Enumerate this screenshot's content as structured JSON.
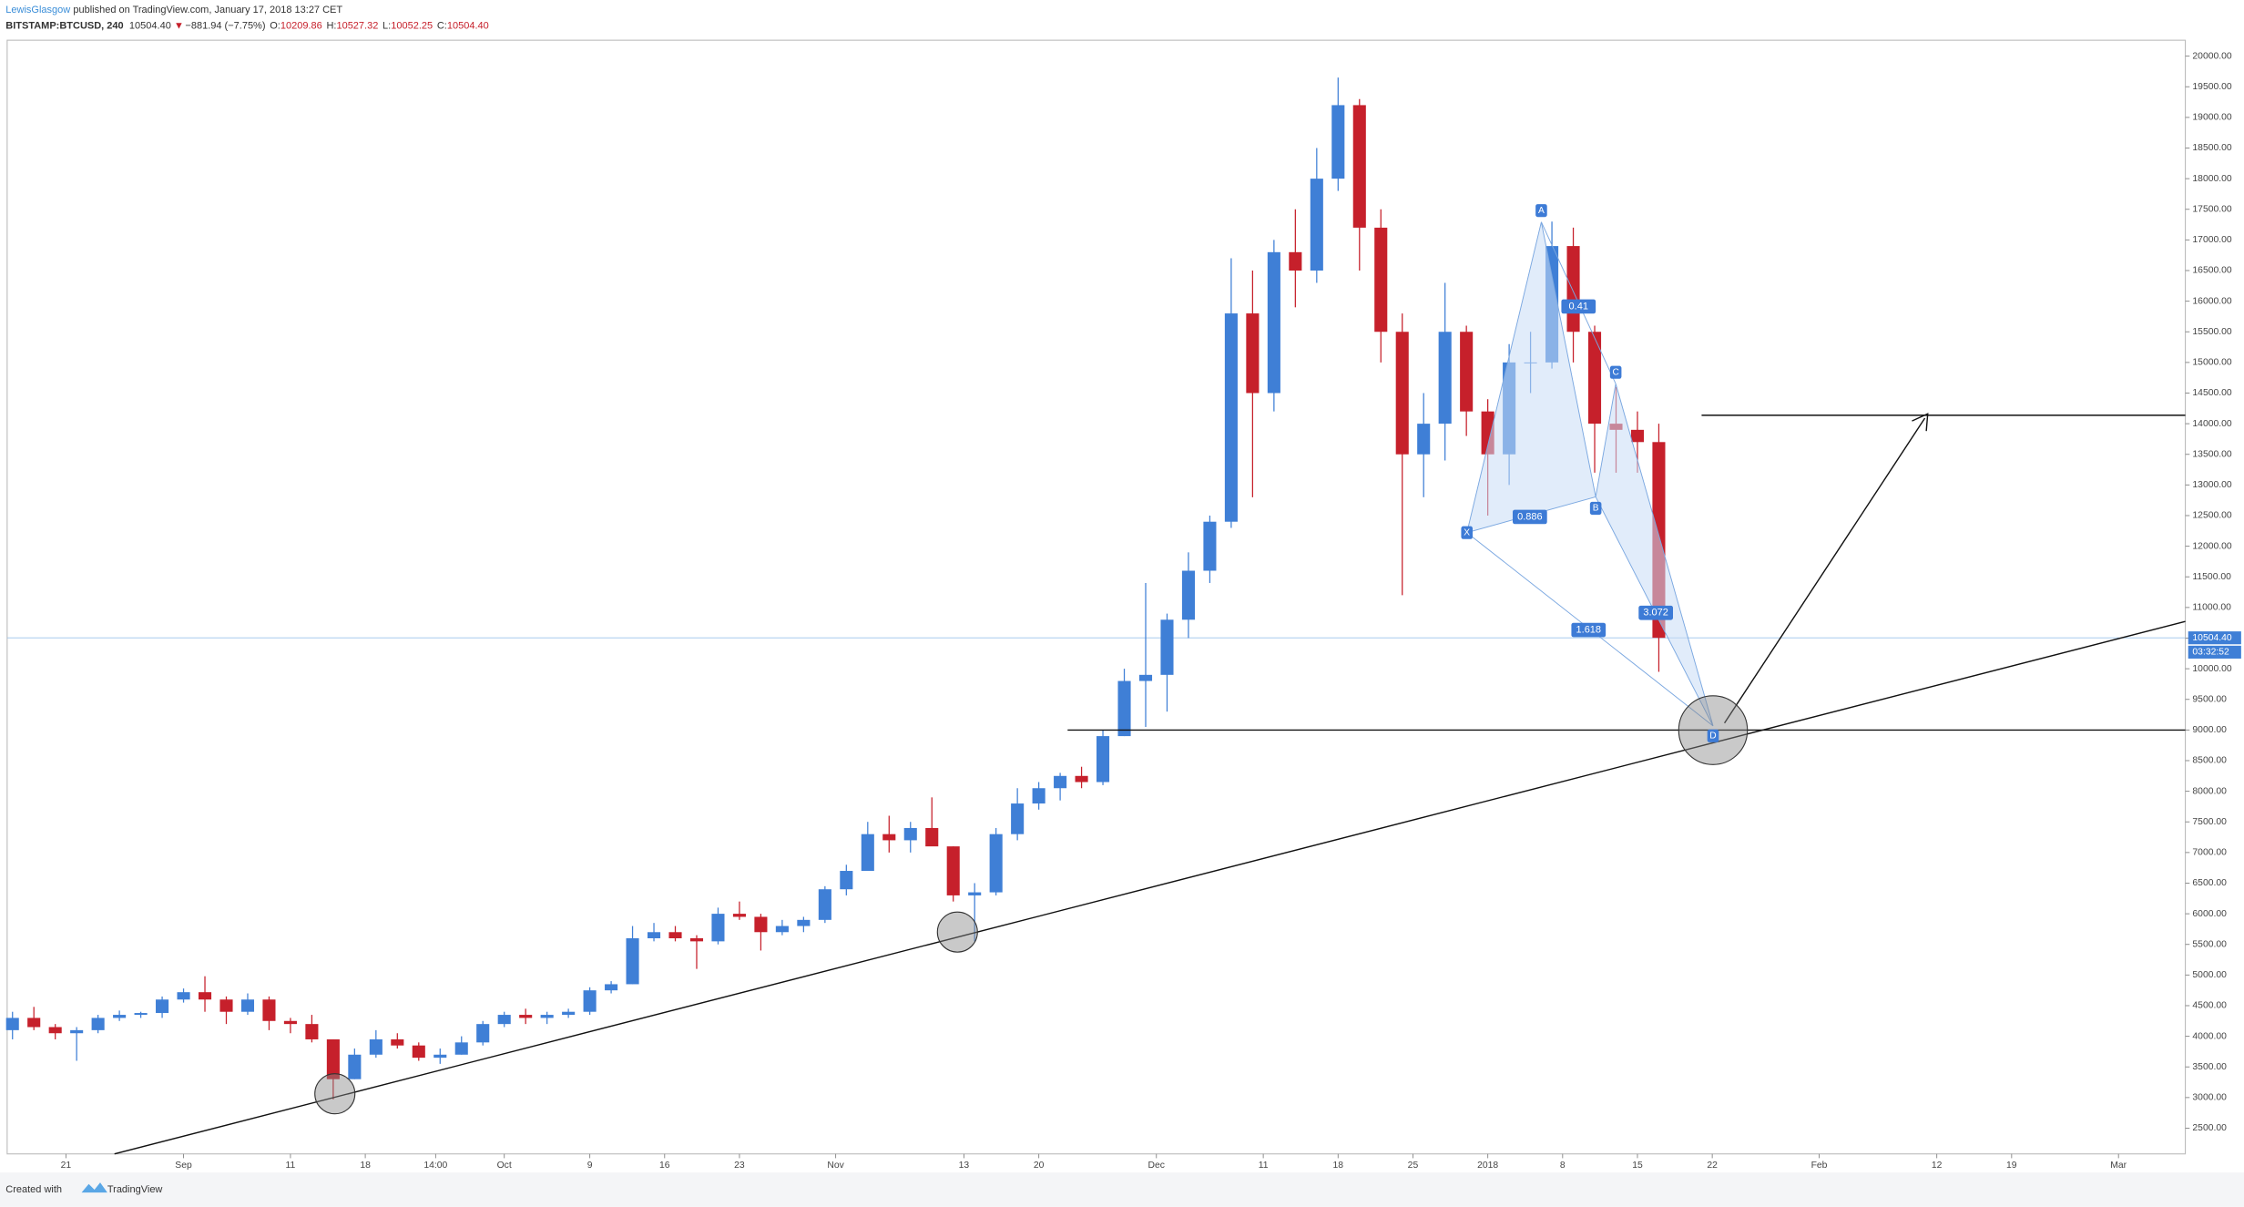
{
  "header": {
    "author": "LewisGlasgow",
    "published": "published on TradingView.com, January 17, 2018 13:27 CET"
  },
  "legend": {
    "symbol": "BITSTAMP:BTCUSD, 240",
    "last": "10504.40",
    "arrow": "▼",
    "change": "−881.94 (−7.75%)",
    "ohlc": [
      {
        "label": "O:",
        "value": "10209.86"
      },
      {
        "label": "H:",
        "value": "10527.32"
      },
      {
        "label": "L:",
        "value": "10052.25"
      },
      {
        "label": "C:",
        "value": "10504.40"
      }
    ]
  },
  "footer": {
    "created": "Created with",
    "brand": "TradingView"
  },
  "chart_data": {
    "type": "candlestick",
    "up_color": "#3f7fd6",
    "down_color": "#c6202b",
    "grid": false,
    "dates": [
      "2017-08-15",
      "2017-08-17",
      "2017-08-19",
      "2017-08-21",
      "2017-08-23",
      "2017-08-25",
      "2017-08-27",
      "2017-08-29",
      "2017-08-31",
      "2017-09-02",
      "2017-09-04",
      "2017-09-06",
      "2017-09-08",
      "2017-09-10",
      "2017-09-12",
      "2017-09-14",
      "2017-09-16",
      "2017-09-18",
      "2017-09-20",
      "2017-09-22",
      "2017-09-24",
      "2017-09-26",
      "2017-09-28",
      "2017-09-30",
      "2017-10-02",
      "2017-10-04",
      "2017-10-06",
      "2017-10-08",
      "2017-10-10",
      "2017-10-12",
      "2017-10-14",
      "2017-10-16",
      "2017-10-18",
      "2017-10-20",
      "2017-10-22",
      "2017-10-24",
      "2017-10-26",
      "2017-10-28",
      "2017-10-30",
      "2017-11-01",
      "2017-11-03",
      "2017-11-05",
      "2017-11-07",
      "2017-11-09",
      "2017-11-11",
      "2017-11-13",
      "2017-11-15",
      "2017-11-17",
      "2017-11-19",
      "2017-11-21",
      "2017-11-23",
      "2017-11-25",
      "2017-11-27",
      "2017-11-29",
      "2017-12-01",
      "2017-12-03",
      "2017-12-05",
      "2017-12-07",
      "2017-12-09",
      "2017-12-11",
      "2017-12-13",
      "2017-12-15",
      "2017-12-17",
      "2017-12-19",
      "2017-12-21",
      "2017-12-23",
      "2017-12-25",
      "2017-12-27",
      "2017-12-29",
      "2017-12-31",
      "2018-01-02",
      "2018-01-04",
      "2018-01-06",
      "2018-01-08",
      "2018-01-10",
      "2018-01-12",
      "2018-01-14",
      "2018-01-16"
    ],
    "open": [
      4100,
      4300,
      4150,
      4050,
      4100,
      4300,
      4350,
      4380,
      4600,
      4720,
      4600,
      4400,
      4600,
      4250,
      4200,
      3950,
      3300,
      3700,
      3950,
      3850,
      3650,
      3700,
      3900,
      4200,
      4350,
      4300,
      4350,
      4400,
      4750,
      4850,
      5600,
      5700,
      5600,
      5550,
      6000,
      5950,
      5700,
      5800,
      5900,
      6400,
      6700,
      7300,
      7200,
      7400,
      7100,
      6300,
      6350,
      7300,
      7800,
      8050,
      8250,
      8150,
      8900,
      9800,
      9900,
      10800,
      11600,
      12400,
      15800,
      14500,
      16800,
      16500,
      18000,
      19200,
      17200,
      15500,
      13500,
      14000,
      15500,
      14200,
      13500,
      15000,
      15000,
      16900,
      15500,
      14000,
      13900,
      13700
    ],
    "high": [
      4400,
      4480,
      4200,
      4150,
      4350,
      4420,
      4400,
      4650,
      4780,
      4980,
      4650,
      4700,
      4650,
      4300,
      4350,
      3950,
      3800,
      4100,
      4050,
      3900,
      3800,
      4000,
      4250,
      4400,
      4450,
      4400,
      4450,
      4800,
      4900,
      5800,
      5850,
      5800,
      5650,
      6100,
      6200,
      6000,
      5900,
      5950,
      6450,
      6800,
      7500,
      7600,
      7500,
      7900,
      7100,
      6500,
      7400,
      8050,
      8150,
      8300,
      8400,
      9000,
      10000,
      11400,
      10900,
      11900,
      12500,
      16700,
      16500,
      17000,
      17500,
      18500,
      19650,
      19300,
      17500,
      15800,
      14500,
      16300,
      15600,
      14400,
      15300,
      15500,
      17300,
      17200,
      15600,
      14600,
      14200,
      14000
    ],
    "low": [
      3950,
      4100,
      3950,
      3600,
      4050,
      4250,
      4300,
      4300,
      4550,
      4400,
      4200,
      4350,
      4100,
      4050,
      3900,
      2970,
      3300,
      3650,
      3800,
      3600,
      3550,
      3700,
      3850,
      4150,
      4200,
      4200,
      4300,
      4350,
      4700,
      4850,
      5550,
      5550,
      5100,
      5500,
      5900,
      5400,
      5650,
      5700,
      5850,
      6300,
      6700,
      7000,
      7000,
      7200,
      6200,
      5550,
      6300,
      7200,
      7700,
      7850,
      8050,
      8100,
      8900,
      9050,
      9300,
      10500,
      11400,
      12300,
      12800,
      14200,
      15900,
      16300,
      17800,
      16500,
      15000,
      11200,
      12800,
      13400,
      13800,
      12500,
      13000,
      14500,
      14900,
      15000,
      13200,
      13200,
      13200,
      9950
    ],
    "close": [
      4300,
      4150,
      4050,
      4100,
      4300,
      4350,
      4380,
      4600,
      4720,
      4600,
      4400,
      4600,
      4250,
      4200,
      3950,
      3300,
      3700,
      3950,
      3850,
      3650,
      3700,
      3900,
      4200,
      4350,
      4300,
      4350,
      4400,
      4750,
      4850,
      5600,
      5700,
      5600,
      5550,
      6000,
      5950,
      5700,
      5800,
      5900,
      6400,
      6700,
      7300,
      7200,
      7400,
      7100,
      6300,
      6350,
      7300,
      7800,
      8050,
      8250,
      8150,
      8900,
      9800,
      9900,
      10800,
      11600,
      12400,
      15800,
      14500,
      16800,
      16500,
      18000,
      19200,
      17200,
      15500,
      13500,
      14000,
      15500,
      14200,
      13500,
      15000,
      15000,
      16900,
      15500,
      14000,
      13900,
      13700,
      10504.4
    ],
    "last_price": {
      "value": 10504.4,
      "label": "10504.40",
      "countdown": "03:32:52"
    },
    "ylim": [
      2080,
      20260
    ],
    "yticks": [
      {
        "value": 2500,
        "label": "2500.00"
      },
      {
        "value": 3000,
        "label": "3000.00"
      },
      {
        "value": 3500,
        "label": "3500.00"
      },
      {
        "value": 4000,
        "label": "4000.00"
      },
      {
        "value": 4500,
        "label": "4500.00"
      },
      {
        "value": 5000,
        "label": "5000.00"
      },
      {
        "value": 5500,
        "label": "5500.00"
      },
      {
        "value": 6000,
        "label": "6000.00"
      },
      {
        "value": 6500,
        "label": "6500.00"
      },
      {
        "value": 7000,
        "label": "7000.00"
      },
      {
        "value": 7500,
        "label": "7500.00"
      },
      {
        "value": 8000,
        "label": "8000.00"
      },
      {
        "value": 8500,
        "label": "8500.00"
      },
      {
        "value": 9000,
        "label": "9000.00"
      },
      {
        "value": 9500,
        "label": "9500.00"
      },
      {
        "value": 10000,
        "label": "10000.00"
      },
      {
        "value": 10500,
        "label": "10500.00"
      },
      {
        "value": 11000,
        "label": "11000.00"
      },
      {
        "value": 11500,
        "label": "11500.00"
      },
      {
        "value": 12000,
        "label": "12000.00"
      },
      {
        "value": 12500,
        "label": "12500.00"
      },
      {
        "value": 13000,
        "label": "13000.00"
      },
      {
        "value": 13500,
        "label": "13500.00"
      },
      {
        "value": 14000,
        "label": "14000.00"
      },
      {
        "value": 14500,
        "label": "14500.00"
      },
      {
        "value": 15000,
        "label": "15000.00"
      },
      {
        "value": 15500,
        "label": "15500.00"
      },
      {
        "value": 16000,
        "label": "16000.00"
      },
      {
        "value": 16500,
        "label": "16500.00"
      },
      {
        "value": 17000,
        "label": "17000.00"
      },
      {
        "value": 17500,
        "label": "17500.00"
      },
      {
        "value": 18000,
        "label": "18000.00"
      },
      {
        "value": 18500,
        "label": "18500.00"
      },
      {
        "value": 19000,
        "label": "19000.00"
      },
      {
        "value": 19500,
        "label": "19500.00"
      },
      {
        "value": 20000,
        "label": "20000.00"
      }
    ],
    "xlim": [
      "2017-08-15T12:00",
      "2018-03-07T06:00"
    ],
    "xticks": [
      {
        "value": "2017-08-21",
        "label": "21"
      },
      {
        "value": "2017-09-01",
        "label": "Sep"
      },
      {
        "value": "2017-09-11",
        "label": "11"
      },
      {
        "value": "2017-09-18",
        "label": "18"
      },
      {
        "value": "2017-09-24T14:00",
        "label": "14:00"
      },
      {
        "value": "2017-10-01",
        "label": "Oct"
      },
      {
        "value": "2017-10-09",
        "label": "9"
      },
      {
        "value": "2017-10-16",
        "label": "16"
      },
      {
        "value": "2017-10-23",
        "label": "23"
      },
      {
        "value": "2017-11-01",
        "label": "Nov"
      },
      {
        "value": "2017-11-13",
        "label": "13"
      },
      {
        "value": "2017-11-20",
        "label": "20"
      },
      {
        "value": "2017-12-01",
        "label": "Dec"
      },
      {
        "value": "2017-12-11",
        "label": "11"
      },
      {
        "value": "2017-12-18",
        "label": "18"
      },
      {
        "value": "2017-12-25",
        "label": "25"
      },
      {
        "value": "2018-01-01",
        "label": "2018"
      },
      {
        "value": "2018-01-08",
        "label": "8"
      },
      {
        "value": "2018-01-15",
        "label": "15"
      },
      {
        "value": "2018-01-22",
        "label": "22"
      },
      {
        "value": "2018-02-01",
        "label": "Feb"
      },
      {
        "value": "2018-02-12",
        "label": "12"
      },
      {
        "value": "2018-02-19",
        "label": "19"
      },
      {
        "value": "2018-03-01",
        "label": "Mar"
      }
    ],
    "annotations": {
      "points": [
        "X",
        "A",
        "B",
        "C",
        "D"
      ],
      "ratios": [
        "0.886",
        "0.41",
        "3.072",
        "1.618"
      ]
    }
  }
}
